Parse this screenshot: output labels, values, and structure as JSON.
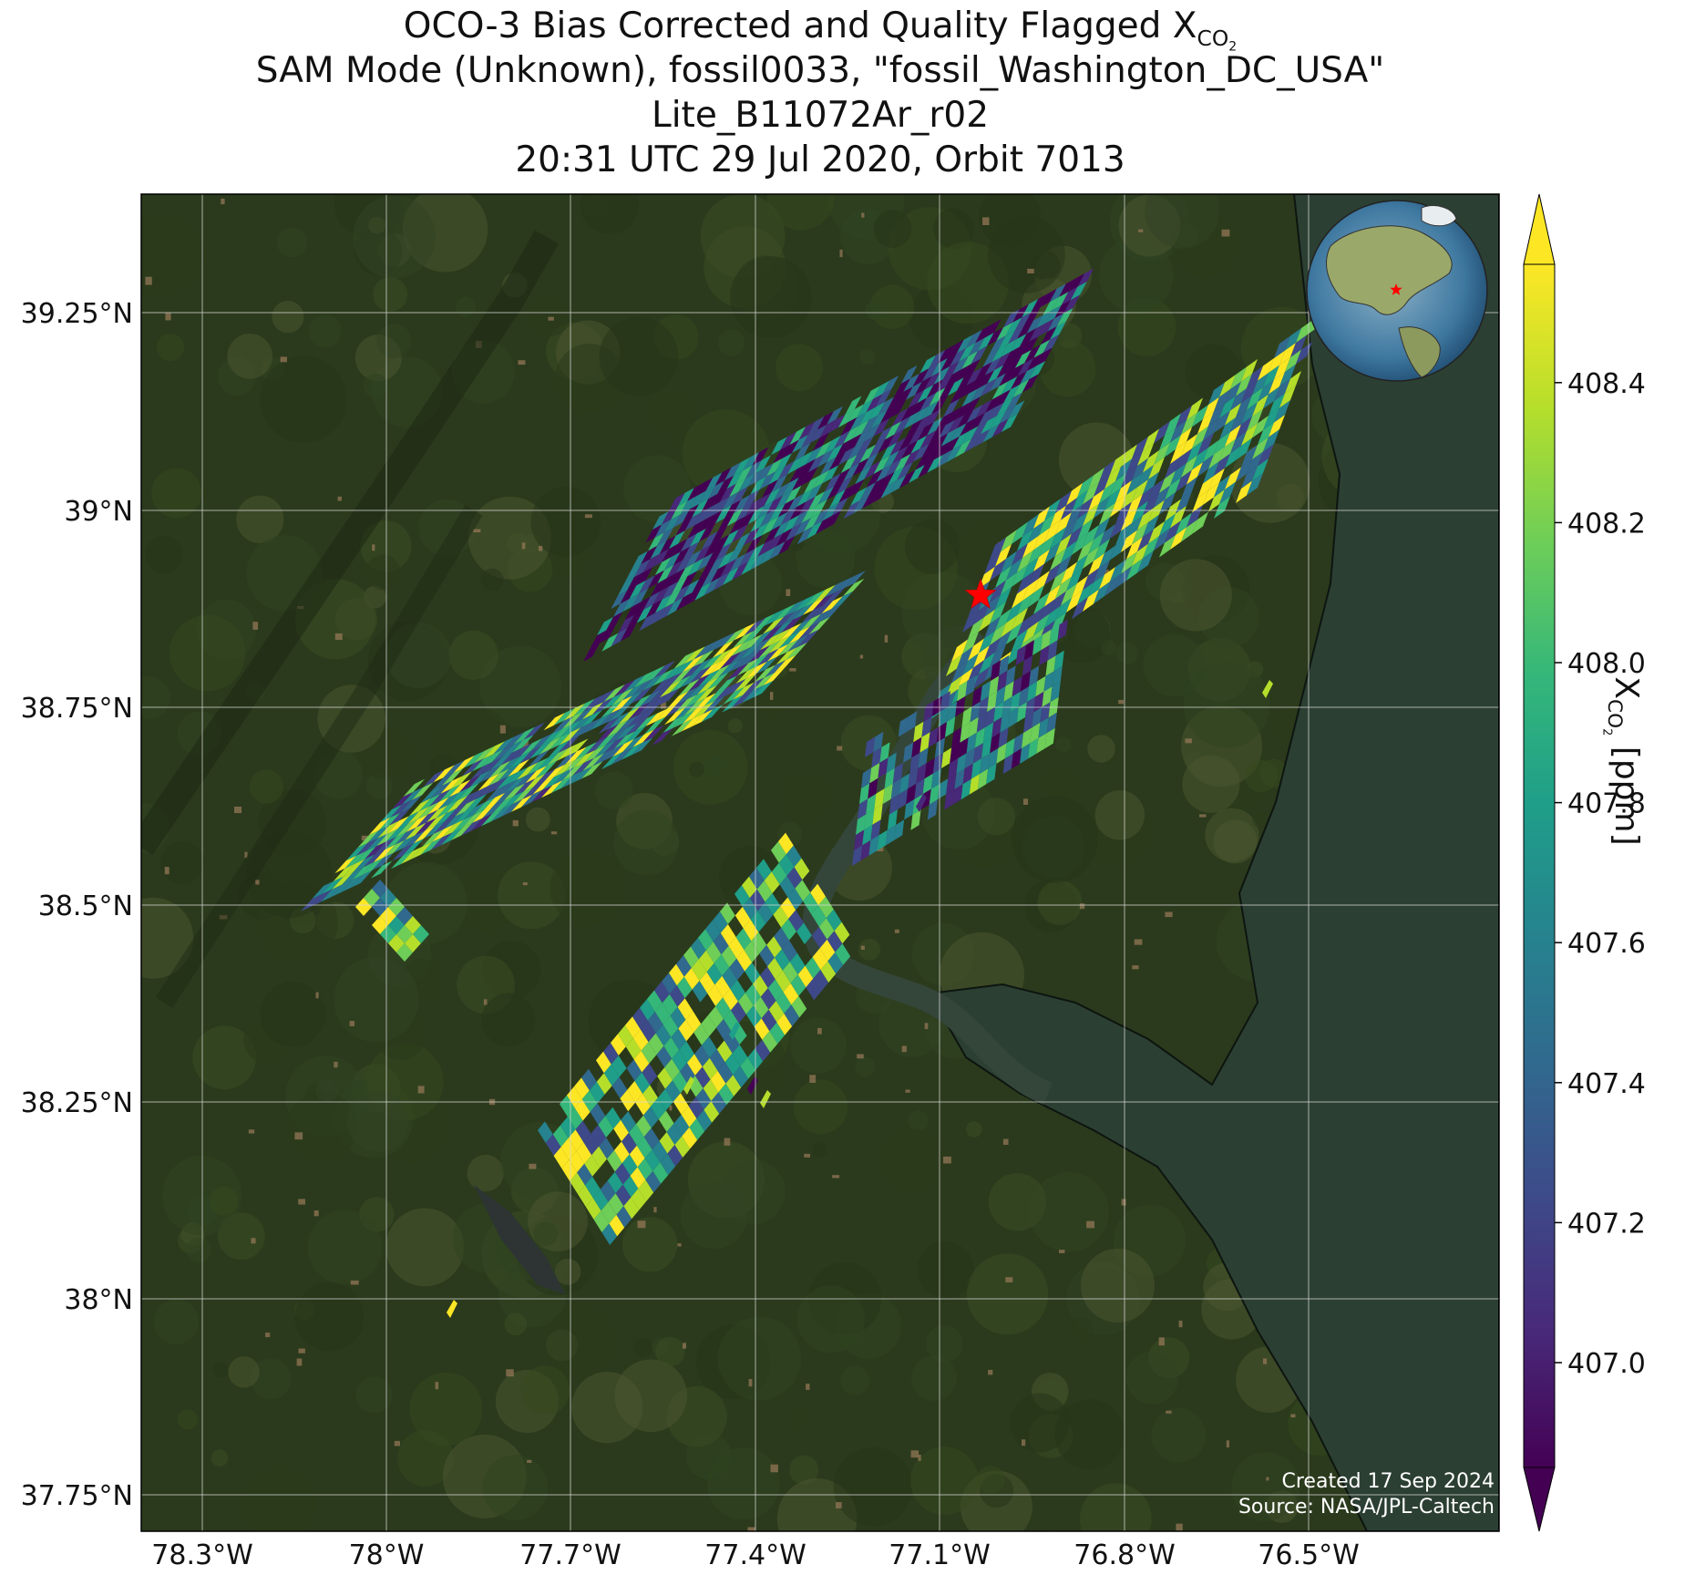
{
  "title": {
    "line1_prefix": "OCO-3 Bias Corrected and Quality Flagged X",
    "line1_sub": "CO",
    "line1_subsub": "2",
    "line2": "SAM Mode (Unknown), fossil0033, \"fossil_Washington_DC_USA\"",
    "line3": "Lite_B11072Ar_r02",
    "line4": "20:31 UTC 29 Jul 2020, Orbit 7013"
  },
  "map": {
    "lat_ticks": [
      "39.25°N",
      "39°N",
      "38.75°N",
      "38.5°N",
      "38.25°N",
      "38°N",
      "37.75°N"
    ],
    "lon_ticks": [
      "78.3°W",
      "78°W",
      "77.7°W",
      "77.4°W",
      "77.1°W",
      "76.8°W",
      "76.5°W"
    ],
    "target_marker": "red-star",
    "inset": "globe-inset",
    "credit_line1": "Created 17 Sep 2024",
    "credit_line2": "Source: NASA/JPL-Caltech"
  },
  "colorbar": {
    "ticks": [
      "407.0",
      "407.2",
      "407.4",
      "407.6",
      "407.8",
      "408.0",
      "408.2",
      "408.4"
    ],
    "label_prefix": "X",
    "label_sub": "CO",
    "label_subsub": "2",
    "label_suffix": " [ppm]",
    "colormap": "viridis",
    "extend": "both"
  },
  "colors": {
    "viridis_stops": [
      "#440154",
      "#482878",
      "#3e4989",
      "#31688e",
      "#26828e",
      "#1f9e89",
      "#35b779",
      "#6ece58",
      "#b5de2b",
      "#fde725"
    ]
  }
}
